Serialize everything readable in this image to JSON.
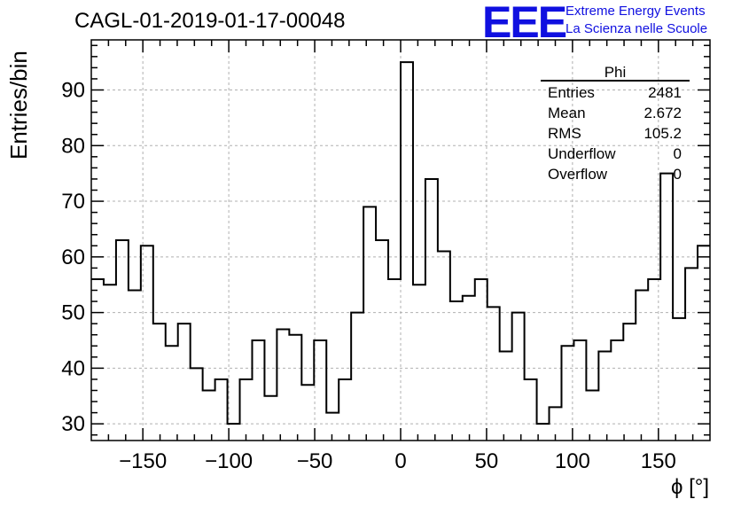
{
  "title": "CAGL-01-2019-01-17-00048",
  "logo": {
    "text": "EEE",
    "line1": "Extreme Energy Events",
    "line2": "La Scienza nelle Scuole",
    "color": "#1010e0"
  },
  "stats": {
    "name": "Phi",
    "rows": [
      {
        "label": "Entries",
        "value": "2481"
      },
      {
        "label": "Mean",
        "value": "2.672"
      },
      {
        "label": "RMS",
        "value": "105.2"
      },
      {
        "label": "Underflow",
        "value": "0"
      },
      {
        "label": "Overflow",
        "value": "0"
      }
    ]
  },
  "chart_data": {
    "type": "bar",
    "histogram": true,
    "xlabel": "ϕ [°]",
    "ylabel": "Entries/bin",
    "xlim": [
      -180,
      180
    ],
    "ylim": [
      27,
      99
    ],
    "bin_width": 7.2,
    "x_ticks": [
      -150,
      -100,
      -50,
      0,
      50,
      100,
      150
    ],
    "y_ticks": [
      30,
      40,
      50,
      60,
      70,
      80,
      90
    ],
    "grid": true,
    "values": [
      56,
      55,
      63,
      54,
      62,
      48,
      44,
      48,
      40,
      36,
      38,
      30,
      38,
      45,
      35,
      47,
      46,
      37,
      45,
      32,
      38,
      50,
      69,
      63,
      56,
      95,
      55,
      74,
      61,
      52,
      53,
      56,
      51,
      43,
      50,
      38,
      30,
      33,
      44,
      45,
      36,
      43,
      45,
      48,
      54,
      56,
      75,
      49,
      58,
      62
    ]
  }
}
